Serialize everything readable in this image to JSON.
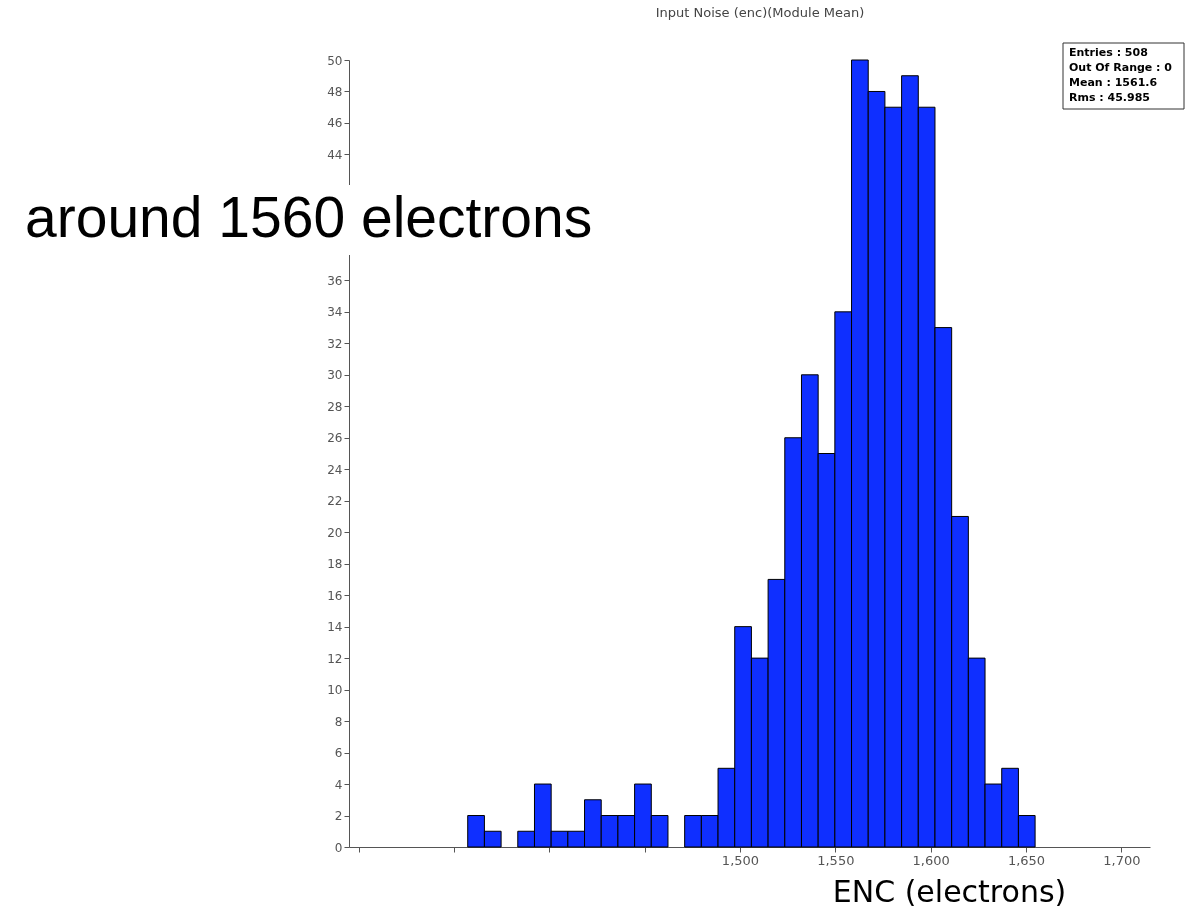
{
  "chart_data": {
    "type": "histogram",
    "title": "Input Noise (enc)(Module Mean)",
    "xlabel": "ENC (electrons)",
    "bins": [
      1357.25,
      1366,
      1374.75,
      1383.5,
      1392.25,
      1401,
      1409.75,
      1418.5,
      1427.25,
      1436,
      1444.75,
      1453.5,
      1462.25,
      1471,
      1479.75,
      1488.5,
      1497.25,
      1506,
      1514.75,
      1523.5,
      1532.25,
      1541,
      1549.75,
      1558.5,
      1567.25,
      1576,
      1584.75,
      1593.5,
      1602.25,
      1611,
      1619.75,
      1628.5,
      1637.25,
      1646,
      1654.75
    ],
    "values": [
      2,
      1,
      0,
      1,
      4,
      1,
      1,
      3,
      2,
      2,
      4,
      2,
      0,
      2,
      2,
      5,
      14,
      12,
      17,
      26,
      30,
      25,
      34,
      50,
      48,
      47,
      49,
      47,
      33,
      21,
      12,
      4,
      5,
      2
    ],
    "color": "#0f2fff",
    "xlim": [
      1295,
      1715
    ],
    "xticks": [
      {
        "value": 1300,
        "label": null
      },
      {
        "value": 1350,
        "label": null
      },
      {
        "value": 1400,
        "label": null
      },
      {
        "value": 1450,
        "label": null
      },
      {
        "value": 1500,
        "label": "1,500"
      },
      {
        "value": 1550,
        "label": "1,550"
      },
      {
        "value": 1600,
        "label": "1,600"
      },
      {
        "value": 1650,
        "label": "1,650"
      },
      {
        "value": 1700,
        "label": "1,700"
      }
    ],
    "ylim": [
      0,
      50
    ],
    "yticks": [
      0,
      2,
      4,
      6,
      8,
      10,
      12,
      14,
      16,
      18,
      20,
      22,
      24,
      26,
      28,
      30,
      32,
      34,
      36,
      44,
      46,
      48,
      50
    ],
    "grid": false,
    "annotations": [
      "around 1560 electrons",
      "Entries :   508",
      "Out Of Range : 0",
      "Mean :  1561.6",
      "Rms :   45.985"
    ]
  }
}
